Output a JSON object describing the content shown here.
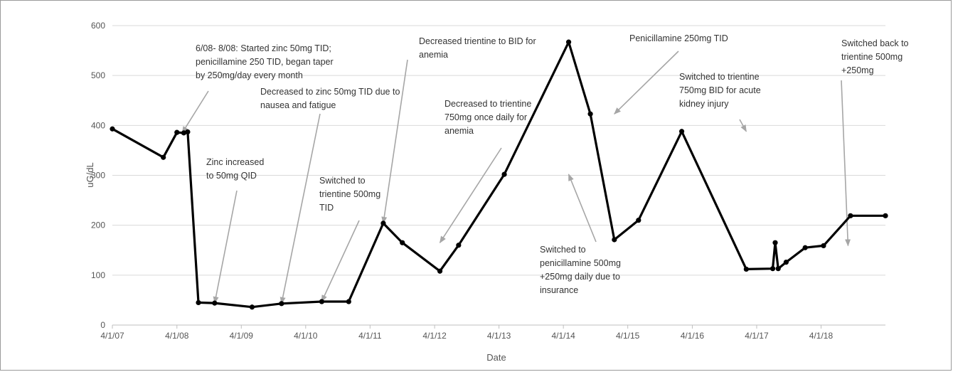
{
  "chart_data": {
    "type": "line",
    "title": "",
    "xlabel": "Date",
    "ylabel": "uG/dL",
    "ylim": [
      0,
      600
    ],
    "yticks": [
      0,
      100,
      200,
      300,
      400,
      500,
      600
    ],
    "xticks": [
      "4/1/07",
      "4/1/08",
      "4/1/09",
      "4/1/10",
      "4/1/11",
      "4/1/12",
      "4/1/13",
      "4/1/14",
      "4/1/15",
      "4/1/16",
      "4/1/17",
      "4/1/18"
    ],
    "grid": true,
    "legend": "none",
    "line_color": "#000000",
    "series": [
      {
        "x": [
          "2007-04-01",
          "2008-01-15",
          "2008-04-01",
          "2008-05-10",
          "2008-06-01",
          "2008-08-01",
          "2008-11-01",
          "2009-06-01",
          "2009-11-15",
          "2010-07-01",
          "2010-12-01",
          "2011-06-15",
          "2011-10-01",
          "2012-05-01",
          "2012-08-15",
          "2013-05-01",
          "2014-05-01",
          "2014-09-01",
          "2015-01-15",
          "2015-06-01",
          "2016-02-01",
          "2017-02-01",
          "2017-07-01",
          "2017-07-15",
          "2017-08-01",
          "2017-09-15",
          "2018-01-01",
          "2018-04-15",
          "2018-09-15",
          "2019-04-01"
        ],
        "values": [
          393,
          336,
          386,
          385,
          387,
          45,
          44,
          36,
          43,
          47,
          47,
          204,
          165,
          108,
          160,
          302,
          567,
          423,
          171,
          210,
          388,
          112,
          113,
          165,
          113,
          126,
          155,
          159,
          219,
          219
        ]
      }
    ],
    "annotations": [
      {
        "lines": [
          "6/08- 8/08: Started zinc 50mg TID;",
          "penicillamine 250 TID, began taper",
          "by 250mg/day every month"
        ],
        "target": {
          "x": "2008-05-01",
          "y": 385
        }
      },
      {
        "lines": [
          "Decreased to zinc 50mg  TID due to",
          "nausea and fatigue"
        ],
        "target": {
          "x": "2009-11-15",
          "y": 43
        }
      },
      {
        "lines": [
          "Decreased trientine to BID for",
          "anemia"
        ],
        "target": {
          "x": "2011-06-15",
          "y": 204
        }
      },
      {
        "lines": [
          "Decreased to trientine",
          "750mg once daily for",
          "anemia"
        ],
        "target": {
          "x": "2012-05-01",
          "y": 165
        }
      },
      {
        "lines": [
          "Penicillamine 250mg TID"
        ],
        "target": {
          "x": "2015-01-15",
          "y": 423
        }
      },
      {
        "lines": [
          "Switched to trientine",
          "750mg BID for acute",
          "kidney injury"
        ],
        "target": {
          "x": "2017-02-01",
          "y": 388
        }
      },
      {
        "lines": [
          "Switched back to",
          "trientine 500mg",
          "+250mg"
        ],
        "target": {
          "x": "2018-09-01",
          "y": 159
        }
      },
      {
        "lines": [
          "Zinc increased",
          "to 50mg QID"
        ],
        "target": {
          "x": "2008-11-01",
          "y": 44
        }
      },
      {
        "lines": [
          "Switched to",
          "trientine 500mg",
          "TID"
        ],
        "target": {
          "x": "2010-07-01",
          "y": 47
        }
      },
      {
        "lines": [
          "Switched to",
          "penicillamine 500mg",
          "+250mg daily due to",
          "insurance"
        ],
        "target": {
          "x": "2014-05-01",
          "y": 302
        }
      }
    ]
  }
}
